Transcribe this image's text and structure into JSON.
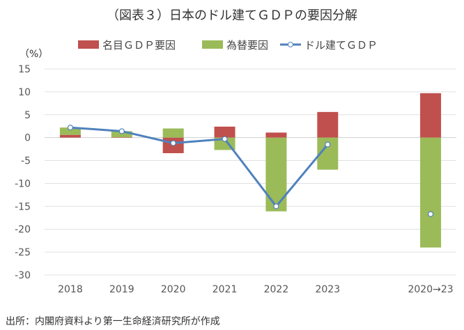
{
  "chart_data": {
    "type": "bar",
    "title": "（図表３）日本のドル建てＧＤＰの要因分解",
    "ylabel": "（%）",
    "ylim": [
      -30,
      15
    ],
    "yticks": [
      15,
      10,
      5,
      0,
      -5,
      -10,
      -15,
      -20,
      -25,
      -30
    ],
    "categories": [
      "2018",
      "2019",
      "2020",
      "2021",
      "2022",
      "2023",
      "2020→23"
    ],
    "grid": true,
    "legend_placement": "top",
    "series": [
      {
        "name": "名目ＧＤＰ要因",
        "kind": "bar",
        "color": "#c0504d",
        "values": [
          0.6,
          0.1,
          -3.4,
          2.4,
          1.1,
          5.6,
          9.7
        ]
      },
      {
        "name": "為替要因",
        "kind": "bar",
        "color": "#9bbb59",
        "values": [
          1.6,
          1.3,
          2.0,
          -2.7,
          -16.1,
          -7.0,
          -24.0
        ]
      },
      {
        "name": "ドル建てＧＤＰ",
        "kind": "line",
        "color": "#4f81bd",
        "values": [
          2.2,
          1.4,
          -1.2,
          -0.3,
          -15.0,
          -1.5,
          -16.7
        ]
      }
    ],
    "source": "出所：内閣府資料より第一生命経済研究所が作成"
  }
}
